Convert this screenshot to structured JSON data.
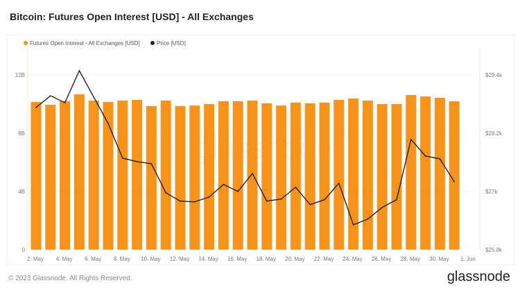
{
  "title": "Bitcoin: Futures Open Interest [USD] - All Exchanges",
  "footer": {
    "copyright": "© 2023 Glassnode. All Rights Reserved.",
    "logo": "glassnode"
  },
  "chart_data": {
    "type": "bar",
    "title": "Bitcoin: Futures Open Interest [USD] - All Exchanges",
    "watermark": "glassnode",
    "categories": [
      "2. May",
      "3. May",
      "4. May",
      "5. May",
      "6. May",
      "7. May",
      "8. May",
      "9. May",
      "10. May",
      "11. May",
      "12. May",
      "13. May",
      "14. May",
      "15. May",
      "16. May",
      "17. May",
      "18. May",
      "19. May",
      "20. May",
      "21. May",
      "22. May",
      "23. May",
      "24. May",
      "25. May",
      "26. May",
      "27. May",
      "28. May",
      "29. May",
      "30. May",
      "31. May"
    ],
    "x_tick_labels": [
      "2. May",
      "4. May",
      "6. May",
      "8. May",
      "10. May",
      "12. May",
      "14. May",
      "16. May",
      "18. May",
      "20. May",
      "22. May",
      "24. May",
      "26. May",
      "28. May",
      "30. May",
      "1. Jun"
    ],
    "series": [
      {
        "name": "Futures Open Interest - All Exchanges [USD]",
        "type": "bar",
        "axis": "left",
        "color": "#f7931a",
        "unit": "B USD",
        "values": [
          10.14,
          9.95,
          10.19,
          10.67,
          10.24,
          10.14,
          10.24,
          10.29,
          9.86,
          10.24,
          9.86,
          9.9,
          10.0,
          10.19,
          10.19,
          10.24,
          10.05,
          9.9,
          10.1,
          10.05,
          10.1,
          10.29,
          10.38,
          10.24,
          10.0,
          10.0,
          10.62,
          10.52,
          10.43,
          10.19
        ]
      },
      {
        "name": "Price [USD]",
        "type": "line",
        "axis": "right",
        "color": "#222222",
        "unit": "USD",
        "values": [
          28729,
          28971,
          28829,
          29486,
          28943,
          28400,
          27686,
          27614,
          27571,
          26971,
          26800,
          26786,
          26886,
          27143,
          27000,
          27371,
          26800,
          26843,
          27086,
          26729,
          26829,
          27171,
          26314,
          26429,
          26671,
          26829,
          28071,
          27729,
          27671,
          27200
        ]
      }
    ],
    "left_axis": {
      "ticks": [
        "0",
        "4B",
        "8B",
        "12B"
      ],
      "tick_values": [
        0,
        4,
        8,
        12
      ],
      "range": [
        0,
        12
      ]
    },
    "right_axis": {
      "ticks": [
        "$25.8k",
        "$27k",
        "$28.2k",
        "$29.4k"
      ],
      "tick_values": [
        25800,
        27000,
        28200,
        29400
      ],
      "range": [
        25800,
        29400
      ]
    },
    "legend": "top-left",
    "grid": true
  }
}
